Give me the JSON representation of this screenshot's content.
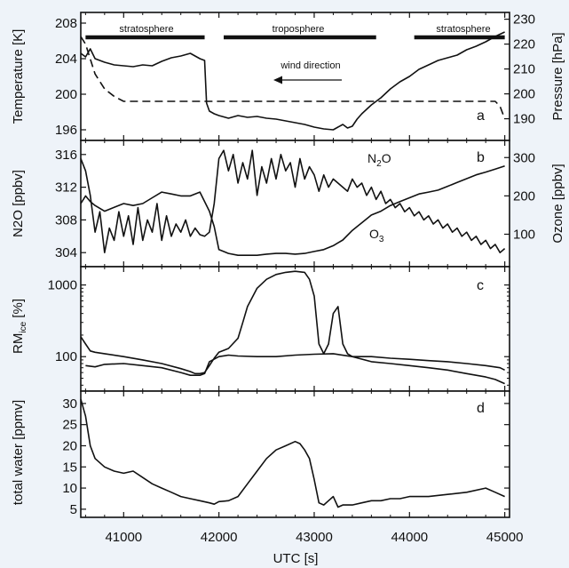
{
  "figure": {
    "x_label": "UTC [s]",
    "x_ticks": [
      41000,
      42000,
      43000,
      44000,
      45000
    ],
    "x_range": [
      40550,
      45050
    ]
  },
  "chart_data": [
    {
      "panel": "a",
      "type": "line",
      "ylabel_left": "Temperature [K]",
      "ylabel_right": "Pressure [hPa]",
      "ylim_left": [
        195,
        209
      ],
      "yticks_left": [
        196,
        200,
        204,
        208
      ],
      "ylim_right": [
        182,
        232
      ],
      "yticks_right": [
        190,
        200,
        210,
        220,
        230
      ],
      "annotations": {
        "regions": [
          "stratosphere",
          "troposphere",
          "stratosphere"
        ],
        "region_spans": [
          [
            40600,
            41850
          ],
          [
            42050,
            43650
          ],
          [
            44050,
            45000
          ]
        ],
        "arrow_label": "wind direction"
      },
      "series": [
        {
          "axis": "left",
          "style": "solid",
          "x": [
            40550,
            40600,
            40650,
            40700,
            40800,
            40900,
            41000,
            41100,
            41200,
            41300,
            41400,
            41500,
            41600,
            41700,
            41800,
            41850,
            41870,
            41900,
            41950,
            42000,
            42100,
            42200,
            42300,
            42400,
            42500,
            42600,
            42700,
            42800,
            42900,
            43000,
            43100,
            43200,
            43300,
            43350,
            43400,
            43450,
            43500,
            43600,
            43700,
            43800,
            43900,
            44000,
            44100,
            44200,
            44300,
            44400,
            44500,
            44600,
            44700,
            44800,
            44900,
            45000
          ],
          "y": [
            204.6,
            204.2,
            205.1,
            204.0,
            203.6,
            203.3,
            203.2,
            203.1,
            203.3,
            203.2,
            203.7,
            204.1,
            204.3,
            204.6,
            204.0,
            203.8,
            199.0,
            198.1,
            197.8,
            197.6,
            197.3,
            197.6,
            197.4,
            197.5,
            197.3,
            197.2,
            197.0,
            196.8,
            196.6,
            196.3,
            196.1,
            196.0,
            196.6,
            196.2,
            196.4,
            197.2,
            197.8,
            198.8,
            199.6,
            200.6,
            201.4,
            202.0,
            202.8,
            203.3,
            203.8,
            204.1,
            204.4,
            205.0,
            205.4,
            205.9,
            206.5,
            207.0
          ]
        },
        {
          "axis": "right",
          "style": "dashed",
          "x": [
            40550,
            40600,
            40650,
            40700,
            40800,
            40900,
            41000,
            41200,
            41500,
            42000,
            42500,
            43000,
            43500,
            44000,
            44500,
            44800,
            44900,
            44950,
            45000
          ],
          "y": [
            223,
            220,
            214,
            208,
            202,
            199,
            197,
            197,
            197,
            197,
            197,
            197,
            197,
            197,
            197,
            197,
            197,
            195,
            190
          ]
        }
      ]
    },
    {
      "panel": "b",
      "type": "line",
      "ylabel_left": "N2O [ppbv]",
      "ylabel_right": "Ozone [ppbv]",
      "ylim_left": [
        302.5,
        317.5
      ],
      "yticks_left": [
        304,
        308,
        312,
        316
      ],
      "ylim_right": [
        20,
        340
      ],
      "yticks_right": [
        100,
        200,
        300
      ],
      "series": [
        {
          "name": "N2O",
          "axis": "left",
          "style": "solid",
          "x": [
            40550,
            40600,
            40650,
            40700,
            40750,
            40800,
            40850,
            40900,
            40950,
            41000,
            41050,
            41100,
            41150,
            41200,
            41250,
            41300,
            41350,
            41400,
            41450,
            41500,
            41550,
            41600,
            41650,
            41700,
            41750,
            41800,
            41850,
            41900,
            41950,
            42000,
            42050,
            42100,
            42150,
            42200,
            42250,
            42300,
            42350,
            42400,
            42450,
            42500,
            42550,
            42600,
            42650,
            42700,
            42750,
            42800,
            42850,
            42900,
            42950,
            43000,
            43050,
            43100,
            43150,
            43200,
            43250,
            43300,
            43350,
            43400,
            43450,
            43500,
            43550,
            43600,
            43650,
            43700,
            43750,
            43800,
            43850,
            43900,
            43950,
            44000,
            44050,
            44100,
            44150,
            44200,
            44250,
            44300,
            44350,
            44400,
            44450,
            44500,
            44550,
            44600,
            44650,
            44700,
            44750,
            44800,
            44850,
            44900,
            44950,
            45000
          ],
          "y": [
            315.5,
            314.0,
            311.0,
            306.5,
            309.0,
            304.0,
            307.0,
            305.5,
            309.0,
            306.0,
            308.5,
            305.0,
            309.5,
            305.5,
            308.0,
            306.5,
            310.0,
            305.5,
            308.5,
            306.0,
            307.5,
            306.5,
            308.0,
            306.0,
            307.0,
            306.2,
            306.0,
            306.5,
            310.0,
            315.5,
            316.5,
            314.0,
            316.0,
            312.5,
            315.0,
            313.0,
            316.5,
            311.0,
            314.5,
            312.5,
            315.5,
            313.0,
            316.0,
            314.0,
            315.0,
            312.0,
            315.5,
            313.0,
            314.5,
            313.5,
            311.5,
            313.5,
            312.0,
            313.0,
            312.5,
            312.0,
            311.5,
            313.0,
            312.0,
            312.5,
            311.0,
            312.0,
            310.5,
            311.5,
            310.0,
            310.5,
            309.5,
            310.0,
            309.0,
            309.5,
            308.5,
            309.0,
            308.0,
            308.5,
            307.5,
            308.0,
            307.0,
            307.5,
            306.5,
            307.0,
            306.0,
            306.5,
            305.5,
            306.0,
            305.0,
            305.5,
            304.5,
            305.0,
            304.0,
            304.5
          ]
        },
        {
          "name": "O3",
          "axis": "right",
          "style": "solid",
          "x": [
            40550,
            40600,
            40650,
            40700,
            40800,
            40900,
            41000,
            41100,
            41200,
            41300,
            41400,
            41500,
            41600,
            41700,
            41800,
            41900,
            41950,
            42000,
            42100,
            42200,
            42300,
            42400,
            42500,
            42600,
            42700,
            42800,
            42900,
            43000,
            43100,
            43200,
            43300,
            43400,
            43500,
            43600,
            43700,
            43800,
            43900,
            44000,
            44100,
            44200,
            44300,
            44400,
            44500,
            44600,
            44700,
            44800,
            44900,
            45000
          ],
          "y": [
            180,
            200,
            185,
            175,
            160,
            170,
            180,
            175,
            180,
            195,
            210,
            205,
            200,
            200,
            210,
            160,
            120,
            60,
            50,
            45,
            45,
            45,
            48,
            50,
            50,
            48,
            50,
            55,
            60,
            70,
            85,
            110,
            130,
            150,
            160,
            175,
            185,
            195,
            205,
            210,
            215,
            225,
            235,
            245,
            255,
            262,
            270,
            278
          ]
        }
      ]
    },
    {
      "panel": "c",
      "type": "line",
      "ylabel_left": "RM_ice [%]",
      "scale": "log",
      "ylim_left": [
        35,
        1700
      ],
      "yticks_left": [
        100,
        1000
      ],
      "series": [
        {
          "axis": "left",
          "style": "solid",
          "x": [
            40550,
            40600,
            40650,
            40700,
            40800,
            41000,
            41200,
            41400,
            41600,
            41700,
            41750,
            41800,
            41850,
            41900,
            41950,
            42000,
            42100,
            42200,
            42250,
            42300,
            42400,
            42500,
            42600,
            42700,
            42800,
            42900,
            42950,
            43000,
            43050,
            43100,
            43150,
            43200,
            43250,
            43300,
            43350,
            43400,
            43500,
            43600,
            43800,
            44000,
            44200,
            44400,
            44600,
            44800,
            44950,
            45000
          ],
          "y": [
            190,
            150,
            120,
            115,
            110,
            100,
            90,
            80,
            68,
            62,
            58,
            58,
            60,
            75,
            95,
            115,
            130,
            180,
            300,
            500,
            900,
            1200,
            1400,
            1500,
            1550,
            1500,
            1200,
            700,
            150,
            110,
            150,
            400,
            500,
            150,
            110,
            100,
            100,
            100,
            95,
            92,
            88,
            85,
            80,
            75,
            70,
            65
          ]
        },
        {
          "axis": "left",
          "style": "solid",
          "x": [
            40600,
            40700,
            40800,
            41000,
            41200,
            41400,
            41600,
            41700,
            41800,
            41850,
            41900,
            42000,
            42100,
            42200,
            42400,
            42600,
            42800,
            43000,
            43200,
            43400,
            43600,
            43800,
            44000,
            44200,
            44400,
            44600,
            44800,
            44900,
            45000
          ],
          "y": [
            75,
            72,
            78,
            80,
            75,
            70,
            60,
            55,
            55,
            58,
            85,
            100,
            105,
            102,
            100,
            100,
            105,
            108,
            110,
            100,
            85,
            80,
            75,
            70,
            65,
            58,
            52,
            48,
            42
          ]
        }
      ]
    },
    {
      "panel": "d",
      "type": "line",
      "ylabel_left": "total water [ppmv]",
      "ylim_left": [
        3.5,
        32.5
      ],
      "yticks_left": [
        5,
        10,
        15,
        20,
        25,
        30
      ],
      "series": [
        {
          "axis": "left",
          "style": "solid",
          "x": [
            40550,
            40600,
            40650,
            40700,
            40800,
            40900,
            41000,
            41100,
            41200,
            41300,
            41400,
            41500,
            41600,
            41700,
            41800,
            41900,
            41950,
            42000,
            42100,
            42200,
            42300,
            42400,
            42500,
            42600,
            42700,
            42800,
            42850,
            42900,
            42950,
            43000,
            43050,
            43100,
            43150,
            43200,
            43250,
            43300,
            43400,
            43500,
            43600,
            43700,
            43800,
            43900,
            44000,
            44200,
            44400,
            44600,
            44800,
            44900,
            45000
          ],
          "y": [
            31,
            27,
            20,
            17,
            15,
            14,
            13.5,
            14,
            12.5,
            11,
            10,
            9,
            8,
            7.5,
            7,
            6.5,
            6.2,
            6.8,
            7,
            8,
            11,
            14,
            17,
            19,
            20,
            21,
            20.5,
            19,
            17,
            12,
            6.5,
            6,
            7,
            8,
            5.5,
            6,
            6,
            6.5,
            7,
            7,
            7.5,
            7.5,
            8,
            8,
            8.5,
            9,
            10,
            9,
            8
          ]
        }
      ]
    }
  ],
  "labels": {
    "panel_a": {
      "letter": "a",
      "ylabel_left": "Temperature [K]",
      "ylabel_right": "Pressure [hPa]",
      "region1": "stratosphere",
      "region2": "troposphere",
      "region3": "stratosphere",
      "arrow": "wind direction"
    },
    "panel_b": {
      "letter": "b",
      "ylabel_left": "N2O [ppbv]",
      "ylabel_right": "Ozone [ppbv]",
      "n2o_label": "N",
      "n2o_sub": "2",
      "n2o_tail": "O",
      "o3_label": "O",
      "o3_sub": "3"
    },
    "panel_c": {
      "letter": "c",
      "ylabel_main": "RM",
      "ylabel_sub": "ice",
      "ylabel_tail": " [%]"
    },
    "panel_d": {
      "letter": "d",
      "ylabel_left": "total water [ppmv]"
    },
    "xaxis": {
      "title": "UTC [s]"
    }
  }
}
